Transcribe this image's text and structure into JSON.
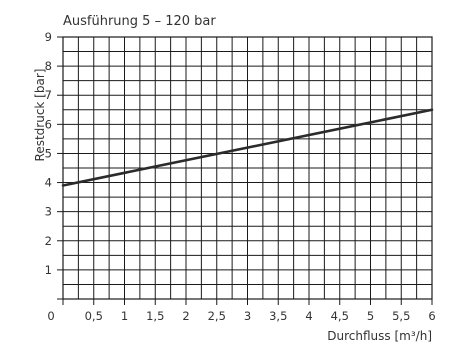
{
  "chart_data": {
    "type": "line",
    "title": "Ausführung 5 – 120 bar",
    "xlabel": "Durchfluss [m³/h]",
    "ylabel": "Restdruck [bar]",
    "xlim": [
      0,
      6
    ],
    "ylim": [
      0,
      9
    ],
    "x_ticks": [
      0,
      0.5,
      1,
      1.5,
      2,
      2.5,
      3,
      3.5,
      4,
      4.5,
      5,
      5.5,
      6
    ],
    "x_tick_labels": [
      "0",
      "0,5",
      "1",
      "1,5",
      "2",
      "2,5",
      "3",
      "3,5",
      "4",
      "4,5",
      "5",
      "5,5",
      "6"
    ],
    "y_ticks": [
      0,
      1,
      2,
      3,
      4,
      5,
      6,
      7,
      8,
      9
    ],
    "y_tick_labels": [
      "",
      "1",
      "2",
      "3",
      "4",
      "5",
      "6",
      "7",
      "8",
      "9"
    ],
    "grid": true,
    "legend": "none",
    "series": [
      {
        "x": [
          0,
          6
        ],
        "y": [
          3.9,
          6.5
        ]
      }
    ],
    "colors": {
      "line": "#2b2b2b",
      "grid": "#1a1a1a",
      "text": "#333333"
    }
  }
}
